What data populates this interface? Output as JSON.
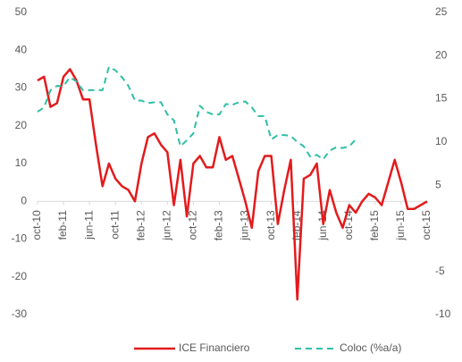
{
  "chart_data": {
    "type": "line",
    "categories": [
      "oct-10",
      null,
      null,
      null,
      "feb-11",
      null,
      null,
      null,
      "jun-11",
      null,
      null,
      null,
      "oct-11",
      null,
      null,
      null,
      "feb-12",
      null,
      null,
      null,
      "jun-12",
      null,
      null,
      null,
      "oct-12",
      null,
      null,
      null,
      "feb-13",
      null,
      null,
      null,
      "jun-13",
      null,
      null,
      null,
      "oct-13",
      null,
      null,
      null,
      "feb-14",
      null,
      null,
      null,
      "jun-14",
      null,
      null,
      null,
      "oct-14",
      null,
      null,
      null,
      "feb-15",
      null,
      null,
      null,
      "jun-15",
      null,
      null,
      null,
      "oct-15"
    ],
    "series": [
      {
        "name": "ICE Financiero",
        "color": "#e41a1c",
        "dash": false,
        "values": [
          32,
          33,
          25,
          26,
          33,
          35,
          32,
          27,
          27,
          15,
          4,
          10,
          6,
          4,
          3,
          0,
          10,
          17,
          18,
          15,
          13,
          -1,
          11,
          -4,
          10,
          12,
          9,
          9,
          17,
          11,
          12,
          6,
          0,
          -7,
          8,
          12,
          12,
          -6,
          3,
          11,
          -26,
          6,
          7,
          10,
          -6,
          3,
          -3,
          -7,
          -1,
          -3,
          0,
          2,
          1,
          -1,
          5,
          11,
          5,
          -2,
          -2,
          -1,
          0
        ]
      },
      {
        "name": "Coloc (%a/a)",
        "color": "#2ebfa5",
        "dash": true,
        "axis": "y2",
        "values": [
          13.5,
          14,
          16,
          16.5,
          16.5,
          17.5,
          17,
          16,
          16,
          16,
          16,
          18.7,
          18.3,
          17.5,
          16.5,
          14.8,
          14.8,
          14.5,
          14.6,
          14.6,
          13.2,
          12.5,
          9.5,
          10.2,
          11,
          14.2,
          13.5,
          13.2,
          13.2,
          14.4,
          14.3,
          14.6,
          14.7,
          14,
          13,
          13,
          10.3,
          10.8,
          10.8,
          10.7,
          10,
          9.5,
          8.3,
          8.5,
          8,
          9,
          9.4,
          9.3,
          9.5,
          10.3,
          null,
          null,
          null,
          null,
          null,
          null,
          null,
          null,
          null,
          null,
          null
        ]
      }
    ],
    "ylim": [
      -30,
      50
    ],
    "yticks": [
      -30,
      -20,
      -10,
      0,
      10,
      20,
      30,
      40,
      50
    ],
    "y2lim": [
      -10,
      25
    ],
    "y2ticks": [
      -10,
      -5,
      5,
      10,
      15,
      20,
      25
    ],
    "grid": false,
    "legend": "bottom"
  }
}
